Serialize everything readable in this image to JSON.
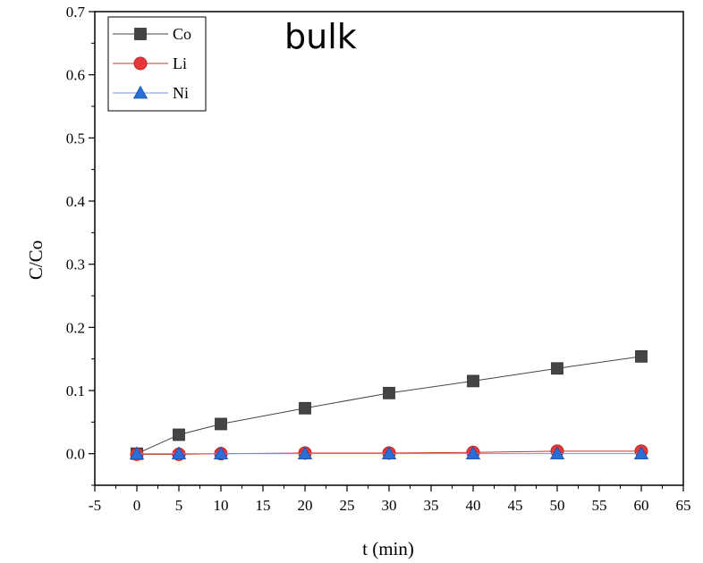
{
  "chart_data": {
    "type": "line",
    "title": "",
    "annotation": "bulk",
    "xlabel": "t (min)",
    "ylabel": "C/Co",
    "xlim": [
      -5,
      65
    ],
    "ylim": [
      -0.05,
      0.7
    ],
    "xticks": [
      -5,
      0,
      5,
      10,
      15,
      20,
      25,
      30,
      35,
      40,
      45,
      50,
      55,
      60,
      65
    ],
    "xtick_labels": [
      "-5",
      "0",
      "5",
      "10",
      "15",
      "20",
      "25",
      "30",
      "35",
      "40",
      "45",
      "50",
      "55",
      "60",
      "65"
    ],
    "yticks": [
      0.0,
      0.1,
      0.2,
      0.3,
      0.4,
      0.5,
      0.6,
      0.7
    ],
    "ytick_labels": [
      "0.0",
      "0.1",
      "0.2",
      "0.3",
      "0.4",
      "0.5",
      "0.6",
      "0.7"
    ],
    "grid": false,
    "legend_position": "top-left",
    "x": [
      0,
      5,
      10,
      20,
      30,
      40,
      50,
      60
    ],
    "series": [
      {
        "name": "Co",
        "values": [
          0.0,
          0.03,
          0.047,
          0.072,
          0.096,
          0.115,
          0.135,
          0.154
        ],
        "color": "#444444",
        "line_color": "#444444",
        "marker": "square"
      },
      {
        "name": "Li",
        "values": [
          -0.001,
          -0.001,
          0.0,
          0.001,
          0.001,
          0.002,
          0.004,
          0.004
        ],
        "color": "#e8373a",
        "line_color": "#c93030",
        "marker": "circle"
      },
      {
        "name": "Ni",
        "values": [
          0.0,
          0.0,
          0.0,
          0.0,
          0.0,
          0.0,
          0.0,
          0.0
        ],
        "color": "#2a6ed8",
        "line_color": "#6a9ad8",
        "marker": "triangle"
      }
    ]
  }
}
